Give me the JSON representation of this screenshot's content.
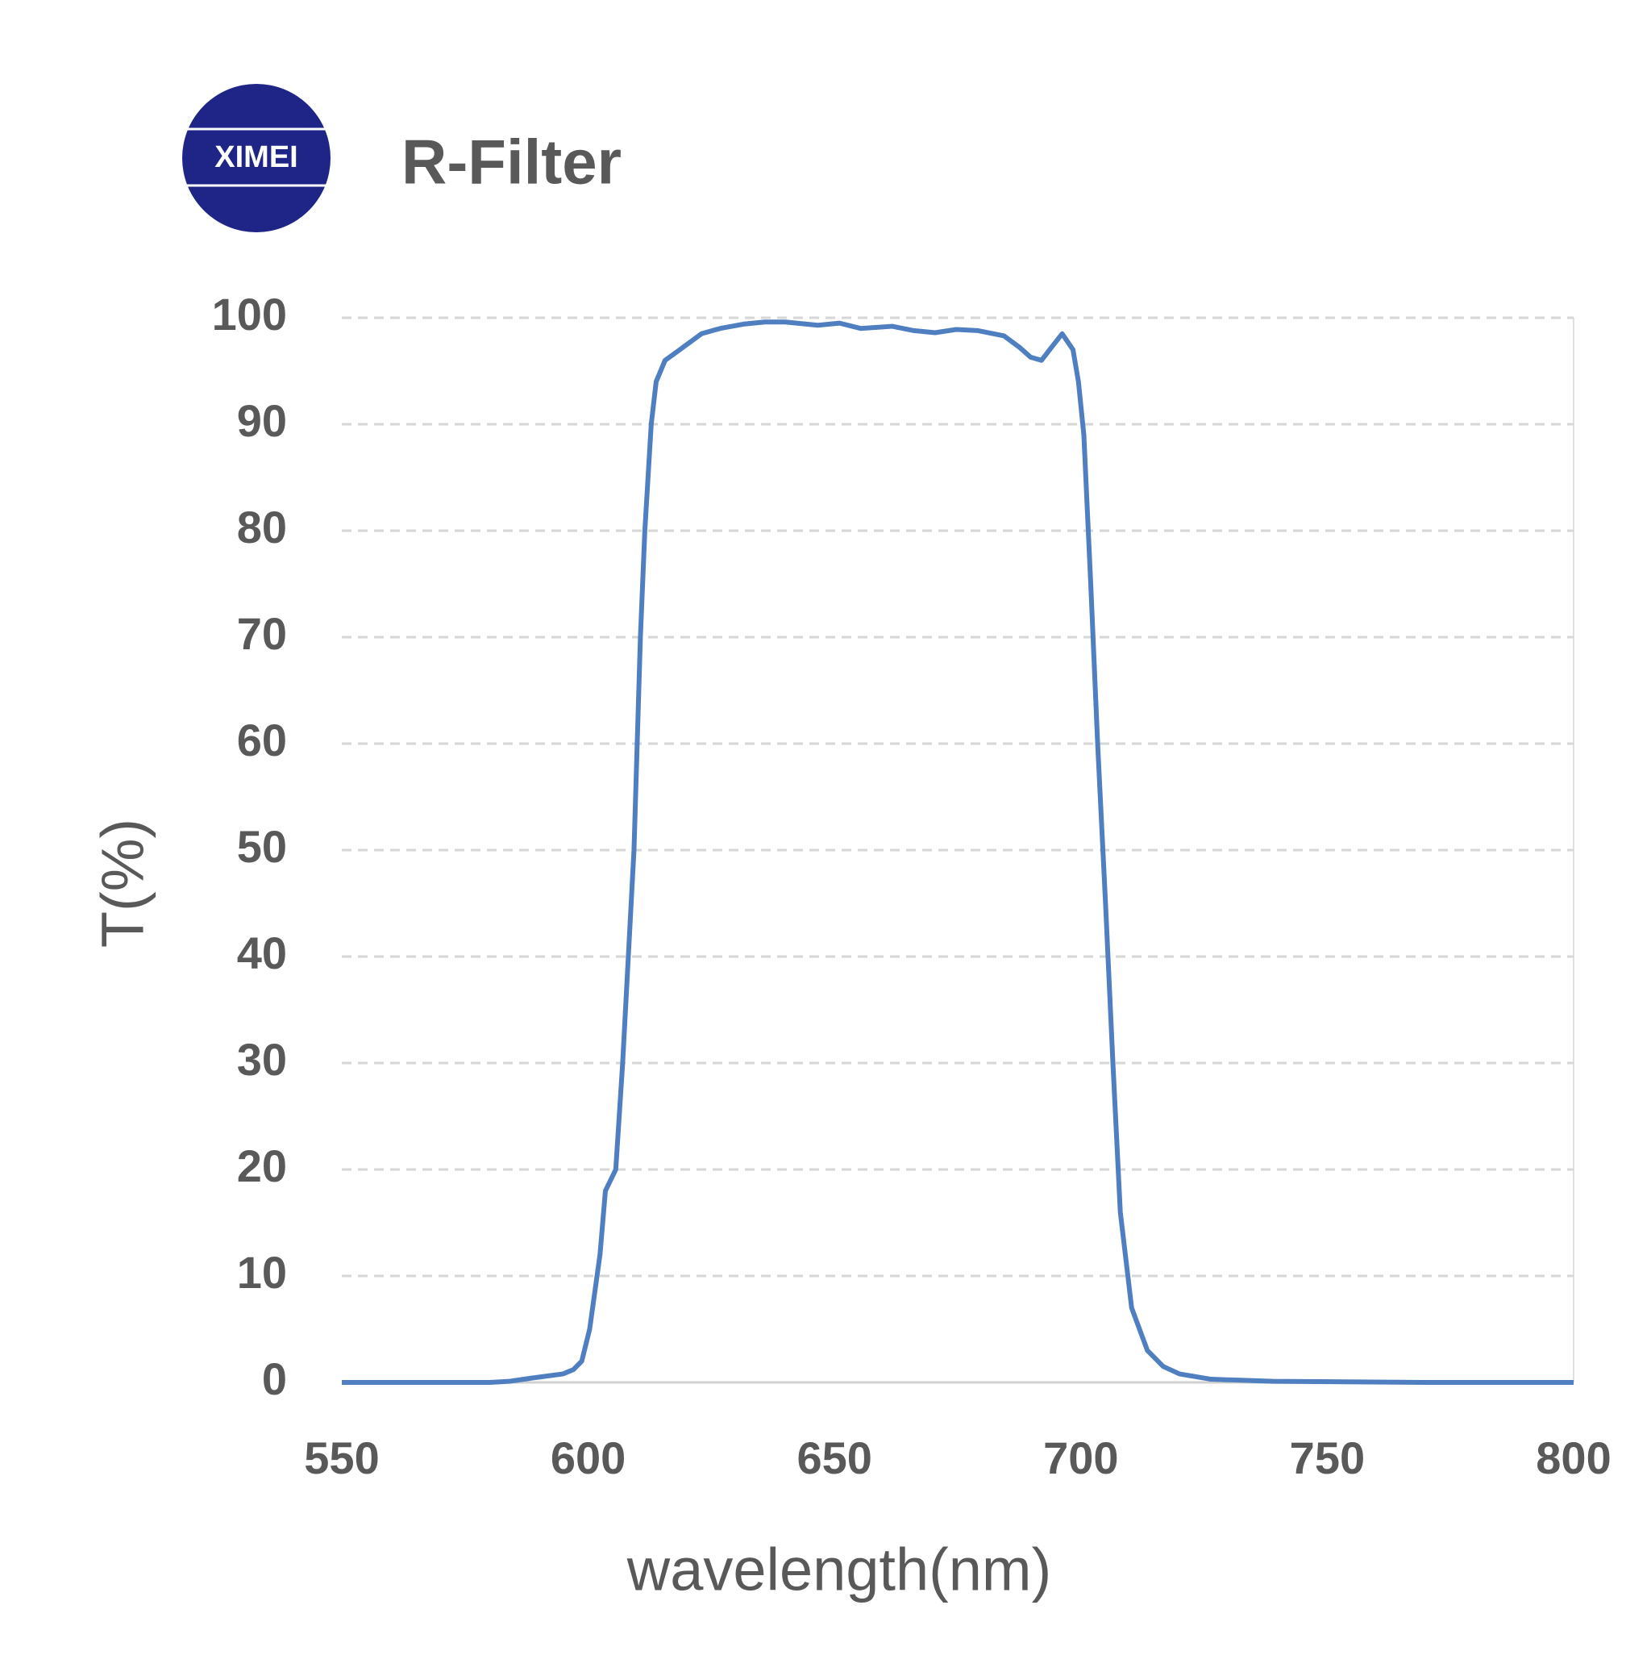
{
  "logo": "XIMEI",
  "chart_data": {
    "type": "line",
    "title": "R-Filter",
    "xlabel": "wavelength(nm)",
    "ylabel": "T(%)",
    "x": [
      550,
      565,
      580,
      584,
      588.4,
      594.9,
      597,
      598.7,
      600.3,
      602.4,
      603.5,
      605.6,
      607,
      609.3,
      610.6,
      611.5,
      612.8,
      613.8,
      615.6,
      618.6,
      623,
      626.8,
      631.5,
      635.8,
      640,
      646.6,
      651,
      655.3,
      661.7,
      666,
      670.4,
      674.7,
      679,
      684.4,
      687.6,
      689.8,
      692,
      694,
      696.2,
      698.4,
      699.5,
      700.6,
      702,
      703.4,
      705,
      706.5,
      708,
      710.3,
      713.5,
      716.7,
      720,
      726.4,
      739,
      770,
      800
    ],
    "series": [
      {
        "name": "R-Filter",
        "color": "#4f7fc0",
        "values": [
          0,
          0,
          0,
          0.1,
          0.4,
          0.8,
          1.2,
          2,
          5,
          12,
          18,
          20,
          30,
          50,
          70,
          80,
          90,
          94,
          96,
          97,
          98.5,
          99,
          99.4,
          99.6,
          99.6,
          99.3,
          99.5,
          99,
          99.2,
          98.8,
          98.6,
          98.9,
          98.8,
          98.3,
          97.2,
          96.3,
          96,
          97.2,
          98.5,
          97,
          94,
          89,
          75,
          60,
          45,
          30,
          16,
          7,
          3,
          1.5,
          0.8,
          0.3,
          0.1,
          0,
          0
        ]
      }
    ],
    "xlim": [
      550,
      800
    ],
    "xticks": [
      550,
      600,
      650,
      700,
      750,
      800
    ],
    "ylim": [
      0,
      100
    ],
    "yticks": [
      0,
      10,
      20,
      30,
      40,
      50,
      60,
      70,
      80,
      90,
      100
    ],
    "grid": true
  }
}
